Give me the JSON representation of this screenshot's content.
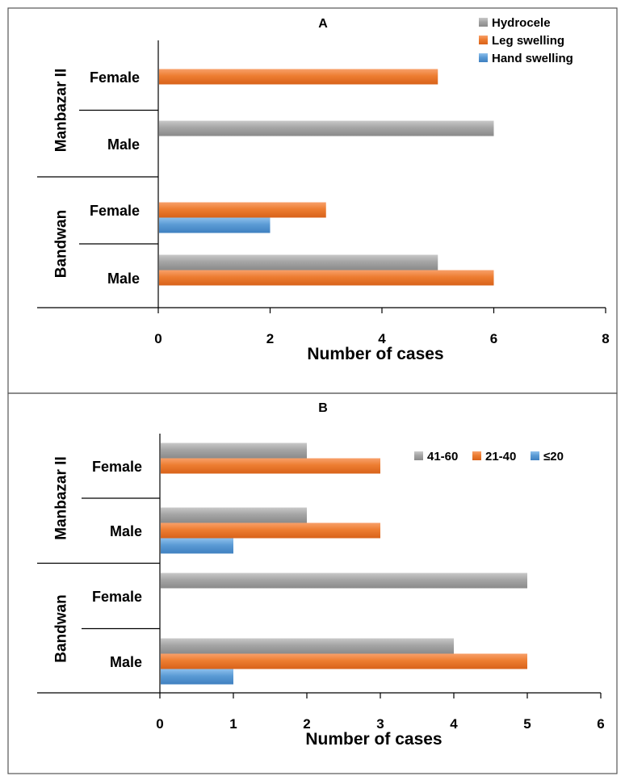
{
  "chart_data": [
    {
      "type": "bar",
      "orientation": "horizontal",
      "panel_label": "A",
      "xlabel": "Number of cases",
      "xlim": [
        0,
        8
      ],
      "xticks": [
        0,
        2,
        4,
        6,
        8
      ],
      "groups": [
        {
          "name": "Manbazar II",
          "categories": [
            "Female",
            "Male"
          ]
        },
        {
          "name": "Bandwan",
          "categories": [
            "Female",
            "Male"
          ]
        }
      ],
      "series": [
        {
          "name": "Hydrocele",
          "color": "#a5a5a5",
          "values": [
            0,
            6,
            0,
            5
          ]
        },
        {
          "name": "Leg swelling",
          "color": "#ed7d31",
          "values": [
            5,
            0,
            3,
            6
          ]
        },
        {
          "name": "Hand swelling",
          "color": "#5b9bd5",
          "values": [
            0,
            0,
            2,
            0
          ]
        }
      ],
      "legend_position": "top-right",
      "legend_layout": "vertical",
      "grid": false
    },
    {
      "type": "bar",
      "orientation": "horizontal",
      "panel_label": "B",
      "xlabel": "Number of cases",
      "xlim": [
        0,
        6
      ],
      "xticks": [
        0,
        1,
        2,
        3,
        4,
        5,
        6
      ],
      "groups": [
        {
          "name": "Manbazar II",
          "categories": [
            "Female",
            "Male"
          ]
        },
        {
          "name": "Bandwan",
          "categories": [
            "Female",
            "Male"
          ]
        }
      ],
      "series": [
        {
          "name": "41-60",
          "color": "#a5a5a5",
          "values": [
            2,
            2,
            5,
            4
          ]
        },
        {
          "name": "21-40",
          "color": "#ed7d31",
          "values": [
            3,
            3,
            0,
            5
          ]
        },
        {
          "name": "≤20",
          "color": "#5b9bd5",
          "values": [
            0,
            1,
            0,
            1
          ]
        }
      ],
      "legend_position": "top-right",
      "legend_layout": "horizontal",
      "grid": false
    }
  ]
}
